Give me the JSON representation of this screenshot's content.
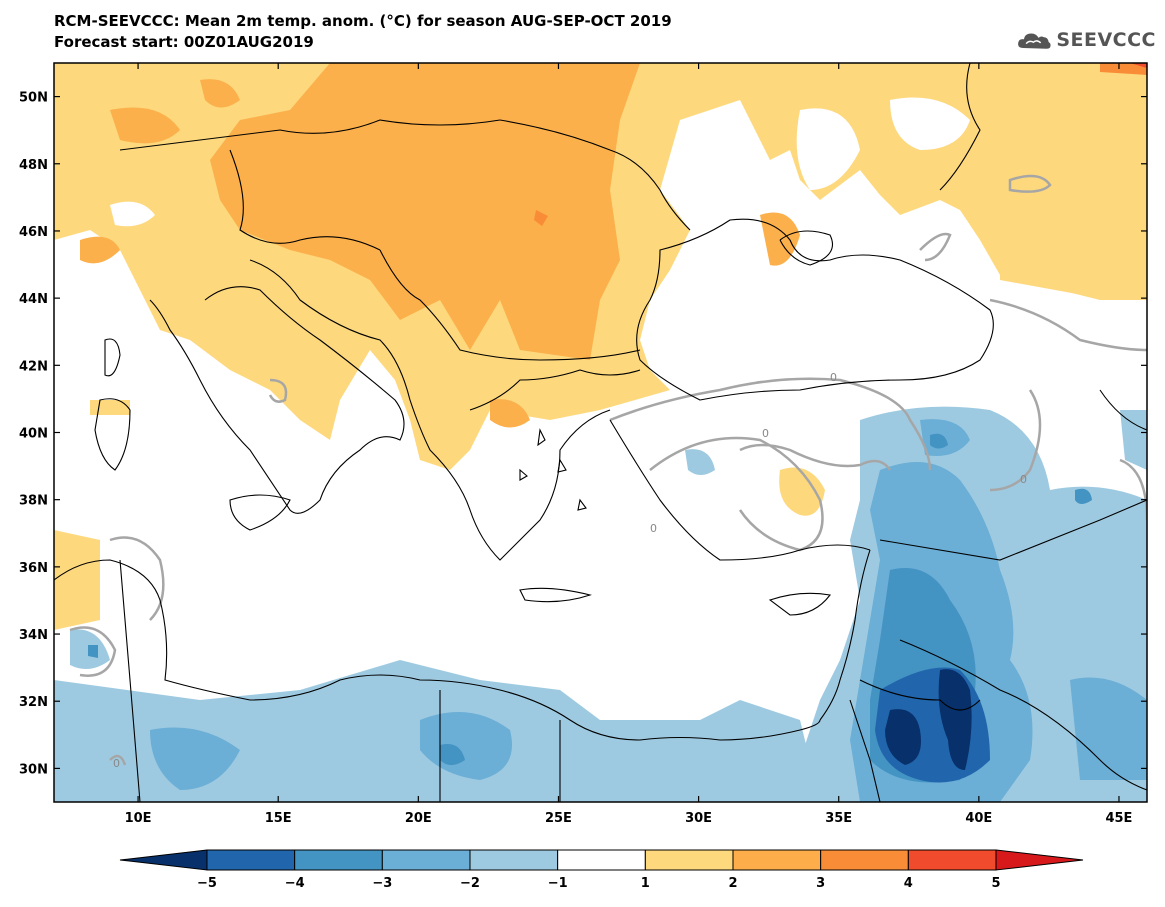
{
  "header": {
    "title": "RCM-SEEVCCC: Mean 2m temp. anom. (°C) for season AUG-SEP-OCT 2019",
    "subtitle": "Forecast start: 00Z01AUG2019"
  },
  "logo": {
    "text": "SEEVCCC",
    "icon": "cloud-icon"
  },
  "map": {
    "lon_range": [
      7,
      46
    ],
    "lat_range": [
      29,
      51
    ],
    "lat_labels": [
      "50N",
      "48N",
      "46N",
      "44N",
      "42N",
      "40N",
      "38N",
      "36N",
      "34N",
      "32N",
      "30N"
    ],
    "lat_values": [
      50,
      48,
      46,
      44,
      42,
      40,
      38,
      36,
      34,
      32,
      30
    ],
    "lon_labels": [
      "10E",
      "15E",
      "20E",
      "25E",
      "30E",
      "35E",
      "40E",
      "45E"
    ],
    "lon_values": [
      10,
      15,
      20,
      25,
      30,
      35,
      40,
      45
    ],
    "contour_labels": [
      "0",
      "0",
      "0",
      "0",
      "0"
    ]
  },
  "colorbar": {
    "labels": [
      "−5",
      "−4",
      "−3",
      "−2",
      "−1",
      "1",
      "2",
      "3",
      "4",
      "5"
    ],
    "colors": [
      "#08306b",
      "#2166ac",
      "#4393c3",
      "#6baed6",
      "#9ecae1",
      "#ffffff",
      "#fdd87d",
      "#fdae4b",
      "#f98c37",
      "#f04b2c",
      "#d7191c"
    ]
  },
  "palette": {
    "warm1": "#fdd87d",
    "warm2": "#fbb04b",
    "warm3": "#f98c37",
    "warm4": "#f04b2c",
    "cool1": "#9ecae1",
    "cool2": "#6baed6",
    "cool3": "#4393c3",
    "cool4": "#2166ac",
    "cool5": "#08306b",
    "contour": "#a6a6a6",
    "coast": "#000000"
  }
}
